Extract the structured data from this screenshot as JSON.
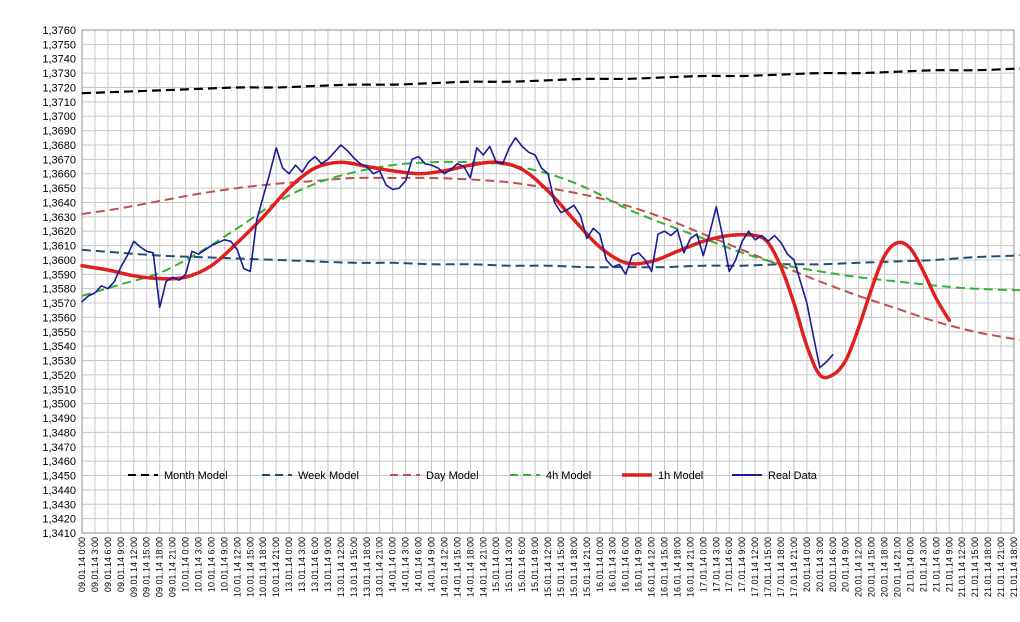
{
  "chart_data": {
    "type": "line",
    "title": "",
    "xlabel": "",
    "ylabel": "",
    "ylim": [
      1.341,
      1.376
    ],
    "ytick_step": 0.001,
    "ytick_labels": [
      "1,3410",
      "1,3420",
      "1,3430",
      "1,3440",
      "1,3450",
      "1,3460",
      "1,3470",
      "1,3480",
      "1,3490",
      "1,3500",
      "1,3510",
      "1,3520",
      "1,3530",
      "1,3540",
      "1,3550",
      "1,3560",
      "1,3570",
      "1,3580",
      "1,3590",
      "1,3600",
      "1,3610",
      "1,3620",
      "1,3630",
      "1,3640",
      "1,3650",
      "1,3660",
      "1,3670",
      "1,3680",
      "1,3690",
      "1,3700",
      "1,3710",
      "1,3720",
      "1,3730",
      "1,3740",
      "1,3750",
      "1,3760"
    ],
    "x_categories": [
      "09.01.14 0:00",
      "09.01.14 3:00",
      "09.01.14 6:00",
      "09.01.14 9:00",
      "09.01.14 12:00",
      "09.01.14 15:00",
      "09.01.14 18:00",
      "09.01.14 21:00",
      "10.01.14 0:00",
      "10.01.14 3:00",
      "10.01.14 6:00",
      "10.01.14 9:00",
      "10.01.14 12:00",
      "10.01.14 15:00",
      "10.01.14 18:00",
      "10.01.14 21:00",
      "13.01.14 0:00",
      "13.01.14 3:00",
      "13.01.14 6:00",
      "13.01.14 9:00",
      "13.01.14 12:00",
      "13.01.14 15:00",
      "13.01.14 18:00",
      "13.01.14 21:00",
      "14.01.14 0:00",
      "14.01.14 3:00",
      "14.01.14 6:00",
      "14.01.14 9:00",
      "14.01.14 12:00",
      "14.01.14 15:00",
      "14.01.14 18:00",
      "14.01.14 21:00",
      "15.01.14 0:00",
      "15.01.14 3:00",
      "15.01.14 6:00",
      "15.01.14 9:00",
      "15.01.14 12:00",
      "15.01.14 15:00",
      "15.01.14 18:00",
      "15.01.14 21:00",
      "16.01.14 0:00",
      "16.01.14 3:00",
      "16.01.14 6:00",
      "16.01.14 9:00",
      "16.01.14 12:00",
      "16.01.14 15:00",
      "16.01.14 18:00",
      "16.01.14 21:00",
      "17.01.14 0:00",
      "17.01.14 3:00",
      "17.01.14 6:00",
      "17.01.14 9:00",
      "17.01.14 12:00",
      "17.01.14 15:00",
      "17.01.14 18:00",
      "17.01.14 21:00",
      "20.01.14 0:00",
      "20.01.14 3:00",
      "20.01.14 6:00",
      "20.01.14 9:00",
      "20.01.14 12:00",
      "20.01.14 15:00",
      "20.01.14 18:00",
      "20.01.14 21:00",
      "21.01.14 0:00",
      "21.01.14 3:00",
      "21.01.14 6:00",
      "21.01.14 9:00",
      "21.01.14 12:00",
      "21.01.14 15:00",
      "21.01.14 18:00",
      "21.01.14 21:00",
      "21.01.14 18:00"
    ],
    "grid": true,
    "legend_position": "bottom-inside",
    "series": [
      {
        "name": "Month Model",
        "color": "#000000",
        "style": "dashed",
        "points": [
          [
            0,
            1.3716
          ],
          [
            3,
            1.3717
          ],
          [
            6,
            1.3718
          ],
          [
            9,
            1.3719
          ],
          [
            12,
            1.372
          ],
          [
            15,
            1.372
          ],
          [
            18,
            1.3721
          ],
          [
            21,
            1.3722
          ],
          [
            24,
            1.3722
          ],
          [
            27,
            1.3723
          ],
          [
            30,
            1.3724
          ],
          [
            33,
            1.3724
          ],
          [
            36,
            1.3725
          ],
          [
            39,
            1.3726
          ],
          [
            42,
            1.3726
          ],
          [
            45,
            1.3727
          ],
          [
            48,
            1.3728
          ],
          [
            51,
            1.3728
          ],
          [
            54,
            1.3729
          ],
          [
            57,
            1.373
          ],
          [
            60,
            1.373
          ],
          [
            63,
            1.3731
          ],
          [
            66,
            1.3732
          ],
          [
            69,
            1.3732
          ],
          [
            72,
            1.3733
          ],
          [
            75,
            1.3734
          ],
          [
            78,
            1.3734
          ],
          [
            80,
            1.3735
          ]
        ]
      },
      {
        "name": "Week Model",
        "color": "#1f4e79",
        "style": "dashed",
        "points": [
          [
            0,
            1.3607
          ],
          [
            3,
            1.3605
          ],
          [
            6,
            1.3603
          ],
          [
            9,
            1.3602
          ],
          [
            12,
            1.3601
          ],
          [
            15,
            1.36
          ],
          [
            18,
            1.3599
          ],
          [
            21,
            1.3598
          ],
          [
            24,
            1.3598
          ],
          [
            27,
            1.3597
          ],
          [
            30,
            1.3597
          ],
          [
            33,
            1.3596
          ],
          [
            36,
            1.3596
          ],
          [
            39,
            1.3595
          ],
          [
            42,
            1.3595
          ],
          [
            45,
            1.3595
          ],
          [
            48,
            1.3596
          ],
          [
            51,
            1.3596
          ],
          [
            54,
            1.3597
          ],
          [
            57,
            1.3597
          ],
          [
            60,
            1.3598
          ],
          [
            63,
            1.3599
          ],
          [
            66,
            1.36
          ],
          [
            69,
            1.3602
          ],
          [
            72,
            1.3603
          ],
          [
            75,
            1.3605
          ],
          [
            78,
            1.3607
          ],
          [
            80,
            1.361
          ]
        ]
      },
      {
        "name": "Day Model",
        "color": "#c0504d",
        "style": "dashed",
        "points": [
          [
            0,
            1.3632
          ],
          [
            3,
            1.3636
          ],
          [
            6,
            1.3641
          ],
          [
            9,
            1.3646
          ],
          [
            12,
            1.365
          ],
          [
            15,
            1.3653
          ],
          [
            18,
            1.3655
          ],
          [
            21,
            1.3657
          ],
          [
            24,
            1.3657
          ],
          [
            27,
            1.3657
          ],
          [
            30,
            1.3656
          ],
          [
            33,
            1.3654
          ],
          [
            36,
            1.365
          ],
          [
            39,
            1.3645
          ],
          [
            42,
            1.3638
          ],
          [
            45,
            1.3629
          ],
          [
            48,
            1.3618
          ],
          [
            51,
            1.3607
          ],
          [
            54,
            1.3596
          ],
          [
            57,
            1.3585
          ],
          [
            60,
            1.3575
          ],
          [
            63,
            1.3566
          ],
          [
            66,
            1.3557
          ],
          [
            69,
            1.355
          ],
          [
            72,
            1.3545
          ],
          [
            75,
            1.354
          ],
          [
            78,
            1.3537
          ],
          [
            80,
            1.3536
          ]
        ]
      },
      {
        "name": "4h Model",
        "color": "#33b233",
        "style": "dashed",
        "points": [
          [
            0,
            1.3575
          ],
          [
            3,
            1.3583
          ],
          [
            6,
            1.3591
          ],
          [
            9,
            1.3605
          ],
          [
            12,
            1.3622
          ],
          [
            15,
            1.364
          ],
          [
            18,
            1.3653
          ],
          [
            21,
            1.3661
          ],
          [
            24,
            1.3666
          ],
          [
            27,
            1.3668
          ],
          [
            30,
            1.3668
          ],
          [
            33,
            1.3666
          ],
          [
            36,
            1.366
          ],
          [
            39,
            1.365
          ],
          [
            42,
            1.3636
          ],
          [
            45,
            1.3625
          ],
          [
            48,
            1.3615
          ],
          [
            51,
            1.3605
          ],
          [
            54,
            1.3597
          ],
          [
            57,
            1.3592
          ],
          [
            60,
            1.3588
          ],
          [
            63,
            1.3585
          ],
          [
            66,
            1.3582
          ],
          [
            69,
            1.358
          ],
          [
            72,
            1.3579
          ],
          [
            75,
            1.3579
          ],
          [
            78,
            1.3578
          ],
          [
            80,
            1.3578
          ]
        ]
      },
      {
        "name": "1h Model",
        "color": "#e02020",
        "style": "solid",
        "points": [
          [
            0,
            1.3596
          ],
          [
            2,
            1.3593
          ],
          [
            4,
            1.3589
          ],
          [
            6,
            1.3587
          ],
          [
            8,
            1.3588
          ],
          [
            10,
            1.3596
          ],
          [
            12,
            1.3612
          ],
          [
            14,
            1.363
          ],
          [
            16,
            1.365
          ],
          [
            18,
            1.3664
          ],
          [
            20,
            1.3668
          ],
          [
            22,
            1.3665
          ],
          [
            24,
            1.3662
          ],
          [
            26,
            1.366
          ],
          [
            28,
            1.3662
          ],
          [
            30,
            1.3666
          ],
          [
            32,
            1.3668
          ],
          [
            34,
            1.3663
          ],
          [
            36,
            1.3648
          ],
          [
            38,
            1.3628
          ],
          [
            40,
            1.3609
          ],
          [
            42,
            1.3598
          ],
          [
            44,
            1.3599
          ],
          [
            46,
            1.3606
          ],
          [
            48,
            1.3613
          ],
          [
            50,
            1.3617
          ],
          [
            52,
            1.3617
          ],
          [
            53,
            1.3612
          ],
          [
            54,
            1.3595
          ],
          [
            55,
            1.357
          ],
          [
            56,
            1.354
          ],
          [
            57,
            1.352
          ],
          [
            58,
            1.352
          ],
          [
            59,
            1.353
          ],
          [
            60,
            1.3553
          ],
          [
            61,
            1.358
          ],
          [
            62,
            1.3603
          ],
          [
            63,
            1.3612
          ],
          [
            64,
            1.3608
          ],
          [
            65,
            1.3592
          ],
          [
            66,
            1.3573
          ],
          [
            67,
            1.3558
          ]
        ]
      },
      {
        "name": "Real Data",
        "color": "#1a1a9a",
        "style": "solid",
        "points": [
          [
            0,
            1.3571
          ],
          [
            0.5,
            1.3575
          ],
          [
            1,
            1.3577
          ],
          [
            1.5,
            1.3582
          ],
          [
            2,
            1.358
          ],
          [
            2.5,
            1.3585
          ],
          [
            3,
            1.3595
          ],
          [
            3.5,
            1.3603
          ],
          [
            4,
            1.3613
          ],
          [
            4.5,
            1.3609
          ],
          [
            5,
            1.3606
          ],
          [
            5.5,
            1.3605
          ],
          [
            6,
            1.3567
          ],
          [
            6.5,
            1.3585
          ],
          [
            7,
            1.3588
          ],
          [
            7.5,
            1.3586
          ],
          [
            8,
            1.359
          ],
          [
            8.5,
            1.3606
          ],
          [
            9,
            1.3604
          ],
          [
            9.5,
            1.3607
          ],
          [
            10,
            1.361
          ],
          [
            10.5,
            1.3612
          ],
          [
            11,
            1.3614
          ],
          [
            11.5,
            1.3613
          ],
          [
            12,
            1.3607
          ],
          [
            12.5,
            1.3594
          ],
          [
            13,
            1.3592
          ],
          [
            13.5,
            1.3628
          ],
          [
            14,
            1.3644
          ],
          [
            14.5,
            1.366
          ],
          [
            15,
            1.3678
          ],
          [
            15.5,
            1.3664
          ],
          [
            16,
            1.366
          ],
          [
            16.5,
            1.3666
          ],
          [
            17,
            1.3661
          ],
          [
            17.5,
            1.3668
          ],
          [
            18,
            1.3672
          ],
          [
            18.5,
            1.3667
          ],
          [
            19,
            1.367
          ],
          [
            19.5,
            1.3675
          ],
          [
            20,
            1.368
          ],
          [
            20.5,
            1.3676
          ],
          [
            21,
            1.3671
          ],
          [
            21.5,
            1.3667
          ],
          [
            22,
            1.3665
          ],
          [
            22.5,
            1.366
          ],
          [
            23,
            1.3662
          ],
          [
            23.5,
            1.3652
          ],
          [
            24,
            1.3649
          ],
          [
            24.5,
            1.365
          ],
          [
            25,
            1.3655
          ],
          [
            25.5,
            1.367
          ],
          [
            26,
            1.3672
          ],
          [
            26.5,
            1.3667
          ],
          [
            27,
            1.3666
          ],
          [
            27.5,
            1.3664
          ],
          [
            28,
            1.366
          ],
          [
            28.5,
            1.3663
          ],
          [
            29,
            1.3667
          ],
          [
            29.5,
            1.3665
          ],
          [
            30,
            1.3657
          ],
          [
            30.5,
            1.3678
          ],
          [
            31,
            1.3673
          ],
          [
            31.5,
            1.3679
          ],
          [
            32,
            1.3668
          ],
          [
            32.5,
            1.3667
          ],
          [
            33,
            1.3678
          ],
          [
            33.5,
            1.3685
          ],
          [
            34,
            1.3679
          ],
          [
            34.5,
            1.3675
          ],
          [
            35,
            1.3673
          ],
          [
            35.5,
            1.3664
          ],
          [
            36,
            1.366
          ],
          [
            36.5,
            1.364
          ],
          [
            37,
            1.3633
          ],
          [
            37.5,
            1.3635
          ],
          [
            38,
            1.3638
          ],
          [
            38.5,
            1.3631
          ],
          [
            39,
            1.3615
          ],
          [
            39.5,
            1.3622
          ],
          [
            40,
            1.3618
          ],
          [
            40.5,
            1.36
          ],
          [
            41,
            1.3595
          ],
          [
            41.5,
            1.3597
          ],
          [
            42,
            1.359
          ],
          [
            42.5,
            1.3603
          ],
          [
            43,
            1.3605
          ],
          [
            43.5,
            1.36
          ],
          [
            44,
            1.3592
          ],
          [
            44.5,
            1.3618
          ],
          [
            45,
            1.362
          ],
          [
            45.5,
            1.3617
          ],
          [
            46,
            1.3621
          ],
          [
            46.5,
            1.3605
          ],
          [
            47,
            1.3615
          ],
          [
            47.5,
            1.3618
          ],
          [
            48,
            1.3603
          ],
          [
            48.5,
            1.3619
          ],
          [
            49,
            1.3637
          ],
          [
            49.5,
            1.3616
          ],
          [
            50,
            1.3592
          ],
          [
            50.5,
            1.36
          ],
          [
            51,
            1.3613
          ],
          [
            51.5,
            1.362
          ],
          [
            52,
            1.3614
          ],
          [
            52.5,
            1.3617
          ],
          [
            53,
            1.3613
          ],
          [
            53.5,
            1.3617
          ],
          [
            54,
            1.3612
          ],
          [
            54.5,
            1.3604
          ],
          [
            55,
            1.36
          ],
          [
            55.5,
            1.3585
          ],
          [
            56,
            1.357
          ],
          [
            56.5,
            1.3547
          ],
          [
            57,
            1.3525
          ],
          [
            57.5,
            1.3529
          ],
          [
            58,
            1.3534
          ]
        ]
      }
    ]
  }
}
